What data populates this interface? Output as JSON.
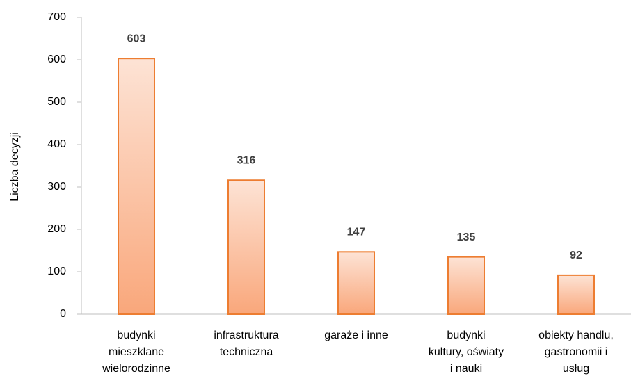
{
  "chart_data": {
    "type": "bar",
    "y_axis_label": "Liczba decyzji",
    "categories": [
      [
        "budynki",
        "mieszklane",
        "wielorodzinne"
      ],
      [
        "infrastruktura",
        "techniczna"
      ],
      [
        "garaże i inne"
      ],
      [
        "budynki",
        "kultury, oświaty",
        "i nauki"
      ],
      [
        "obiekty handlu,",
        "gastronomii i",
        "usług"
      ]
    ],
    "values": [
      603,
      316,
      147,
      135,
      92
    ],
    "color": "#ed7d31",
    "ylim": [
      0,
      700
    ],
    "yticks": [
      0,
      100,
      200,
      300,
      400,
      500,
      600,
      700
    ],
    "grid": false
  }
}
